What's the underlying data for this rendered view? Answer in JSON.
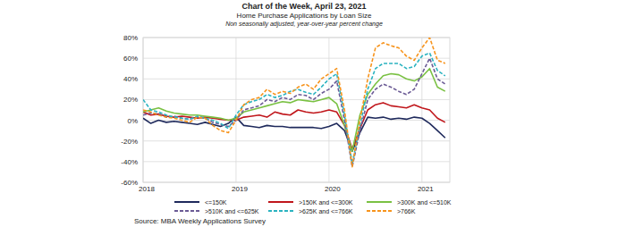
{
  "chart_data": {
    "type": "line",
    "title": "Chart of the Week, April 23, 2021",
    "subtitle": [
      "Home Purchase Applications by Loan Size",
      "Non seasonally adjusted, year-over-year percent change"
    ],
    "source": "Source: MBA Weekly Applications Survey",
    "x": [
      2018,
      2018.083,
      2018.167,
      2018.25,
      2018.333,
      2018.417,
      2018.5,
      2018.583,
      2018.667,
      2018.75,
      2018.833,
      2018.917,
      2019,
      2019.083,
      2019.167,
      2019.25,
      2019.333,
      2019.417,
      2019.5,
      2019.583,
      2019.667,
      2019.75,
      2019.833,
      2019.917,
      2020,
      2020.083,
      2020.167,
      2020.25,
      2020.333,
      2020.417,
      2020.5,
      2020.583,
      2020.667,
      2020.75,
      2020.833,
      2020.917,
      2021,
      2021.083,
      2021.167,
      2021.25
    ],
    "series": [
      {
        "name": "<=150K",
        "color": "#1f2a5c",
        "line_style": "solid",
        "values": [
          2,
          -3,
          0,
          -2,
          -1,
          -2,
          -3,
          -4,
          -2,
          -4,
          -6,
          -3,
          3,
          -5,
          -6,
          -7,
          -5,
          -6,
          -6,
          -7,
          -7,
          -7,
          -7,
          -8,
          -6,
          -3,
          -10,
          -30,
          -12,
          3,
          2,
          3,
          1,
          2,
          1,
          3,
          2,
          -3,
          -10,
          -17
        ]
      },
      {
        "name": ">150K and <=300K",
        "color": "#c0161b",
        "line_style": "solid",
        "values": [
          8,
          5,
          6,
          4,
          3,
          4,
          3,
          2,
          3,
          2,
          1,
          0,
          0,
          3,
          4,
          5,
          3,
          8,
          6,
          5,
          10,
          8,
          7,
          8,
          10,
          8,
          -5,
          -28,
          -8,
          10,
          15,
          17,
          14,
          13,
          12,
          15,
          12,
          10,
          2,
          -2
        ]
      },
      {
        "name": ">300K and <=510K",
        "color": "#7ac143",
        "line_style": "solid",
        "values": [
          8,
          10,
          12,
          9,
          7,
          6,
          5,
          5,
          4,
          3,
          2,
          0,
          2,
          8,
          10,
          12,
          14,
          16,
          18,
          17,
          20,
          19,
          18,
          20,
          22,
          16,
          -5,
          -30,
          5,
          25,
          35,
          43,
          45,
          44,
          40,
          38,
          42,
          50,
          32,
          28
        ]
      },
      {
        "name": ">510K and <=625K",
        "color": "#6b5b95",
        "line_style": "dashed",
        "values": [
          5,
          7,
          6,
          3,
          4,
          2,
          1,
          3,
          2,
          -2,
          -4,
          -6,
          0,
          10,
          12,
          14,
          20,
          18,
          22,
          20,
          25,
          24,
          20,
          26,
          30,
          38,
          0,
          -45,
          -10,
          20,
          30,
          35,
          32,
          28,
          25,
          30,
          45,
          60,
          40,
          35
        ]
      },
      {
        "name": ">625K and <=766K",
        "color": "#2bb3c0",
        "line_style": "dashed",
        "values": [
          20,
          10,
          8,
          5,
          3,
          2,
          1,
          4,
          2,
          0,
          -3,
          -8,
          5,
          15,
          18,
          20,
          25,
          22,
          24,
          28,
          30,
          27,
          25,
          32,
          40,
          45,
          5,
          -42,
          -5,
          30,
          50,
          55,
          55,
          55,
          50,
          52,
          62,
          65,
          48,
          43
        ]
      },
      {
        "name": ">766K",
        "color": "#f7941d",
        "line_style": "dashed",
        "values": [
          10,
          8,
          5,
          3,
          2,
          0,
          -2,
          3,
          2,
          -5,
          -10,
          -12,
          0,
          15,
          20,
          22,
          30,
          25,
          28,
          26,
          32,
          35,
          30,
          40,
          45,
          50,
          10,
          -45,
          0,
          40,
          70,
          75,
          72,
          70,
          62,
          58,
          70,
          80,
          58,
          55
        ]
      }
    ],
    "xlim": [
      2018,
      2021.3
    ],
    "xticks": [
      2018,
      2019,
      2020,
      2021
    ],
    "ylim": [
      -60,
      80
    ],
    "yticks": [
      {
        "value": -60,
        "label": "-60%"
      },
      {
        "value": -40,
        "label": "-40%"
      },
      {
        "value": -20,
        "label": "-20%"
      },
      {
        "value": 0,
        "label": "0%"
      },
      {
        "value": 20,
        "label": "20%"
      },
      {
        "value": 40,
        "label": "40%"
      },
      {
        "value": 60,
        "label": "60%"
      },
      {
        "value": 80,
        "label": "80%"
      }
    ],
    "grid": true,
    "legend": "bottom"
  }
}
